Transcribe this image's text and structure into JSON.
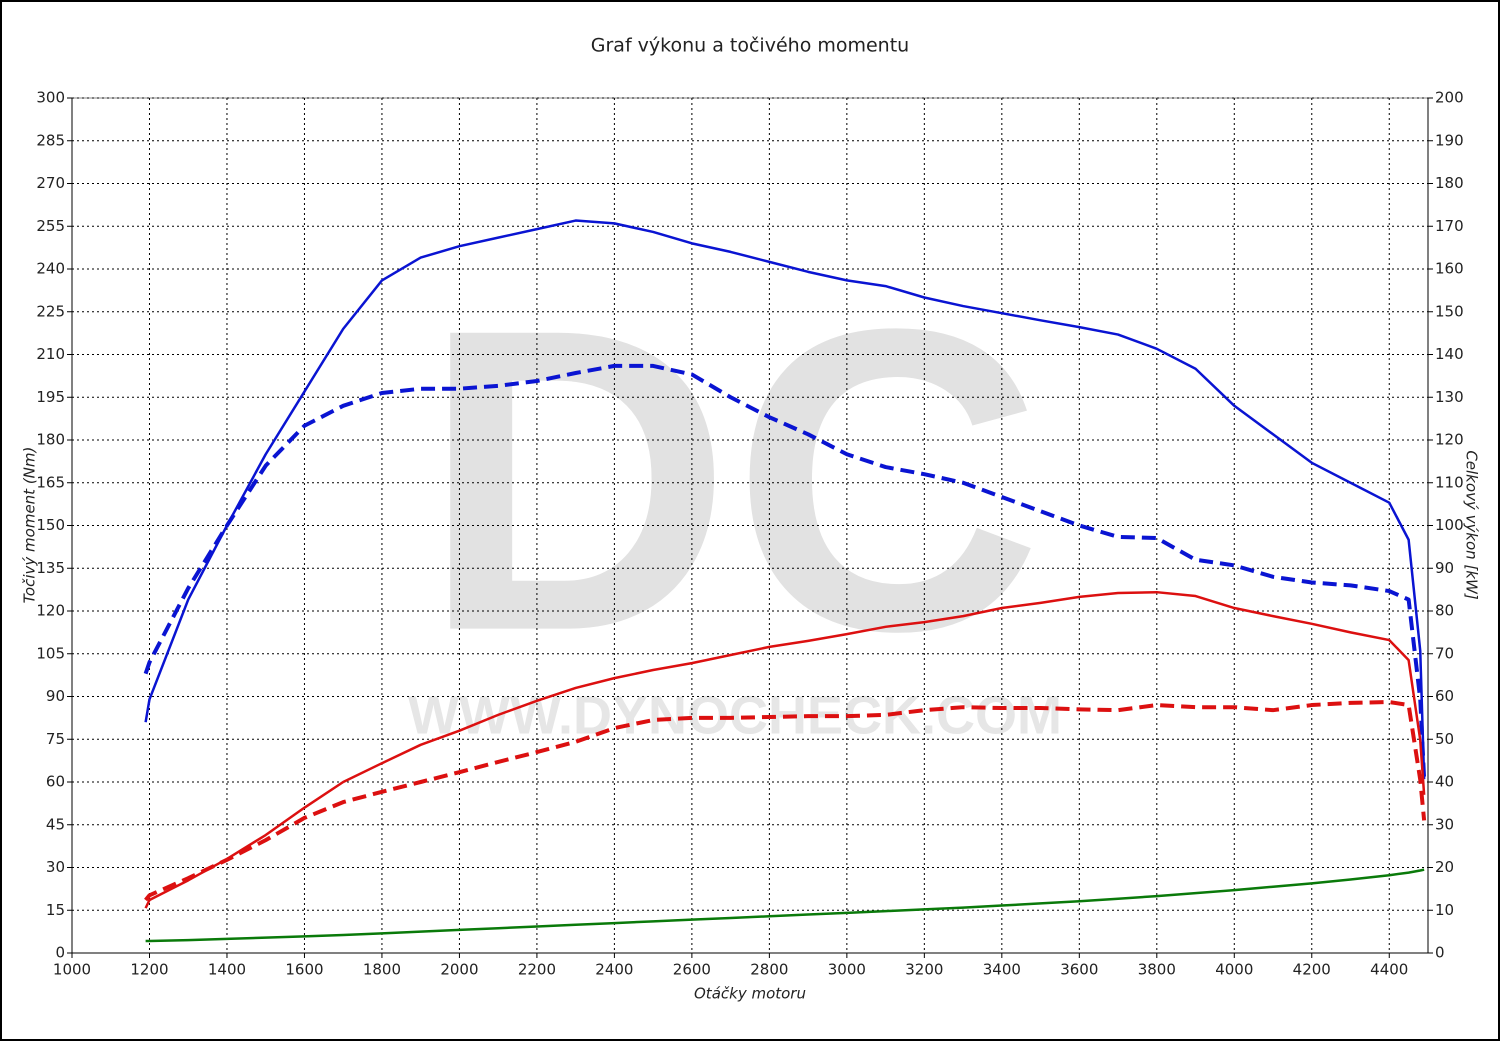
{
  "chart_data": {
    "type": "line",
    "title": "Graf výkonu a točivého momentu",
    "x_label": "Otáčky motoru",
    "y_label": "Točivý moment (Nm)",
    "y2_label": "Celkový výkon [kW]",
    "watermark": {
      "logo": "DC",
      "url": "WWW.DYNOCHECK.COM"
    },
    "grid": true,
    "xlim": [
      1000,
      4500
    ],
    "xticks": [
      1000,
      1200,
      1400,
      1600,
      1800,
      2000,
      2200,
      2400,
      2600,
      2800,
      3000,
      3200,
      3400,
      3600,
      3800,
      4000,
      4200,
      4400
    ],
    "ylim": [
      0,
      300
    ],
    "yticks": [
      0,
      15,
      30,
      45,
      60,
      75,
      90,
      105,
      120,
      135,
      150,
      165,
      180,
      195,
      210,
      225,
      240,
      255,
      270,
      285,
      300
    ],
    "y2lim": [
      0,
      200
    ],
    "y2ticks": [
      0,
      10,
      20,
      30,
      40,
      50,
      60,
      70,
      80,
      90,
      100,
      110,
      120,
      130,
      140,
      150,
      160,
      170,
      180,
      190,
      200
    ],
    "x": [
      1190,
      1200,
      1300,
      1400,
      1500,
      1600,
      1700,
      1800,
      1900,
      2000,
      2100,
      2200,
      2300,
      2400,
      2500,
      2600,
      2700,
      2800,
      2900,
      3000,
      3100,
      3200,
      3300,
      3400,
      3500,
      3600,
      3700,
      3800,
      3900,
      4000,
      4100,
      4200,
      4300,
      4400,
      4450,
      4480,
      4490
    ],
    "series": [
      {
        "color": "#0a14d2",
        "style": "solid",
        "axis": "y",
        "values": [
          81,
          89,
          124,
          150,
          175,
          197,
          219,
          236,
          244,
          248,
          251,
          254,
          257,
          256,
          253,
          249,
          246,
          242.5,
          239,
          236,
          234,
          230,
          227,
          224.5,
          222,
          219.6,
          217,
          212,
          205,
          192,
          182,
          172,
          165,
          158,
          145,
          106,
          61
        ]
      },
      {
        "color": "#0a14d2",
        "style": "dashed",
        "axis": "y",
        "values": [
          98,
          102,
          128,
          150,
          171,
          185,
          192,
          196.5,
          198,
          198,
          199,
          200.7,
          203.5,
          206,
          206,
          203,
          195,
          188,
          182,
          175,
          170.5,
          168,
          165,
          160,
          155,
          150,
          146,
          145.6,
          138,
          136,
          132,
          130,
          129,
          127,
          124,
          89,
          61
        ]
      },
      {
        "color": "#dc1010",
        "style": "solid",
        "axis": "y2",
        "values": [
          10.5,
          12.4,
          17,
          22,
          27.6,
          34,
          40,
          44.4,
          48.7,
          52,
          55.7,
          59,
          62,
          64.3,
          66.2,
          67.8,
          69.7,
          71.6,
          73,
          74.6,
          76.3,
          77.4,
          78.8,
          80.7,
          81.9,
          83.3,
          84.2,
          84.4,
          83.5,
          80.7,
          78.8,
          77,
          75,
          73.2,
          68.5,
          49.8,
          37
        ]
      },
      {
        "color": "#dc1010",
        "style": "dashed",
        "axis": "y2",
        "values": [
          12.4,
          13.5,
          17.5,
          21.8,
          26.4,
          31.6,
          35.3,
          37.7,
          40,
          42.3,
          44.7,
          47,
          49.4,
          52.6,
          54.5,
          55,
          55,
          55.2,
          55.4,
          55.4,
          55.7,
          56.8,
          57.5,
          57.3,
          57.3,
          57,
          56.8,
          58,
          57.5,
          57.5,
          56.8,
          58,
          58.5,
          58.7,
          58,
          40.5,
          31
        ]
      },
      {
        "color": "#0a7a0a",
        "style": "solid",
        "axis": "y2",
        "values": [
          2.8,
          2.8,
          3.0,
          3.3,
          3.6,
          3.9,
          4.2,
          4.6,
          5.0,
          5.4,
          5.8,
          6.2,
          6.6,
          7.0,
          7.4,
          7.8,
          8.2,
          8.6,
          9.0,
          9.4,
          9.8,
          10.2,
          10.6,
          11.1,
          11.6,
          12.1,
          12.7,
          13.3,
          14.0,
          14.7,
          15.5,
          16.3,
          17.2,
          18.2,
          18.8,
          19.3,
          19.5
        ]
      }
    ]
  }
}
